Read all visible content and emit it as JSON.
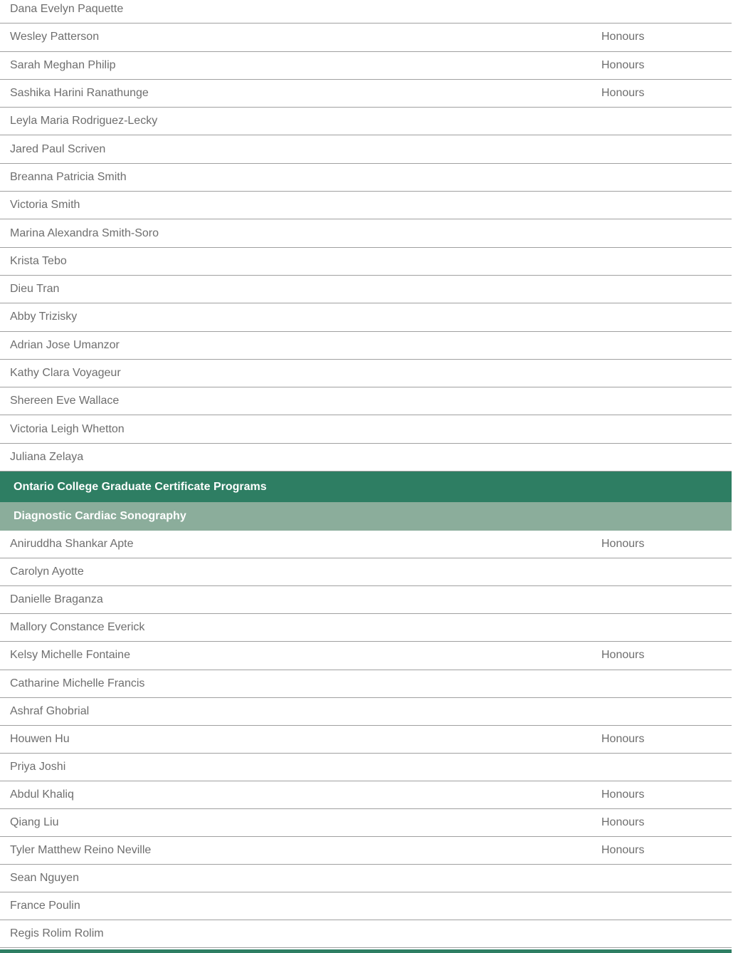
{
  "honours_label": "Honours",
  "headers": {
    "programs": "Ontario College Graduate Certificate Programs",
    "program": "Diagnostic Cardiac Sonography"
  },
  "graduates_top": [
    {
      "name": "Dana Evelyn Paquette",
      "honours": false
    },
    {
      "name": "Wesley Patterson",
      "honours": true
    },
    {
      "name": "Sarah Meghan Philip",
      "honours": true
    },
    {
      "name": "Sashika Harini Ranathunge",
      "honours": true
    },
    {
      "name": "Leyla Maria Rodriguez-Lecky",
      "honours": false
    },
    {
      "name": "Jared Paul Scriven",
      "honours": false
    },
    {
      "name": "Breanna Patricia Smith",
      "honours": false
    },
    {
      "name": "Victoria Smith",
      "honours": false
    },
    {
      "name": "Marina Alexandra Smith-Soro",
      "honours": false
    },
    {
      "name": "Krista Tebo",
      "honours": false
    },
    {
      "name": "Dieu Tran",
      "honours": false
    },
    {
      "name": "Abby Trizisky",
      "honours": false
    },
    {
      "name": "Adrian Jose Umanzor",
      "honours": false
    },
    {
      "name": "Kathy Clara Voyageur",
      "honours": false
    },
    {
      "name": "Shereen Eve Wallace",
      "honours": false
    },
    {
      "name": "Victoria Leigh Whetton",
      "honours": false
    },
    {
      "name": "Juliana Zelaya",
      "honours": false
    }
  ],
  "graduates_program": [
    {
      "name": "Aniruddha Shankar Apte",
      "honours": true
    },
    {
      "name": "Carolyn Ayotte",
      "honours": false
    },
    {
      "name": "Danielle Braganza",
      "honours": false
    },
    {
      "name": "Mallory Constance Everick",
      "honours": false
    },
    {
      "name": "Kelsy Michelle Fontaine",
      "honours": true
    },
    {
      "name": "Catharine Michelle Francis",
      "honours": false
    },
    {
      "name": "Ashraf Ghobrial",
      "honours": false
    },
    {
      "name": "Houwen Hu",
      "honours": true
    },
    {
      "name": "Priya Joshi",
      "honours": false
    },
    {
      "name": "Abdul Khaliq",
      "honours": true
    },
    {
      "name": "Qiang Liu",
      "honours": true
    },
    {
      "name": "Tyler Matthew Reino Neville",
      "honours": true
    },
    {
      "name": "Sean Nguyen",
      "honours": false
    },
    {
      "name": "France Poulin",
      "honours": false
    },
    {
      "name": "Regis Rolim Rolim",
      "honours": false
    }
  ],
  "colors": {
    "header_dark_green": "#2e7e63",
    "header_light_green": "#8bad9b",
    "row_text_gray": "#6e6e6e",
    "divider_gray": "#a0a0a0"
  }
}
